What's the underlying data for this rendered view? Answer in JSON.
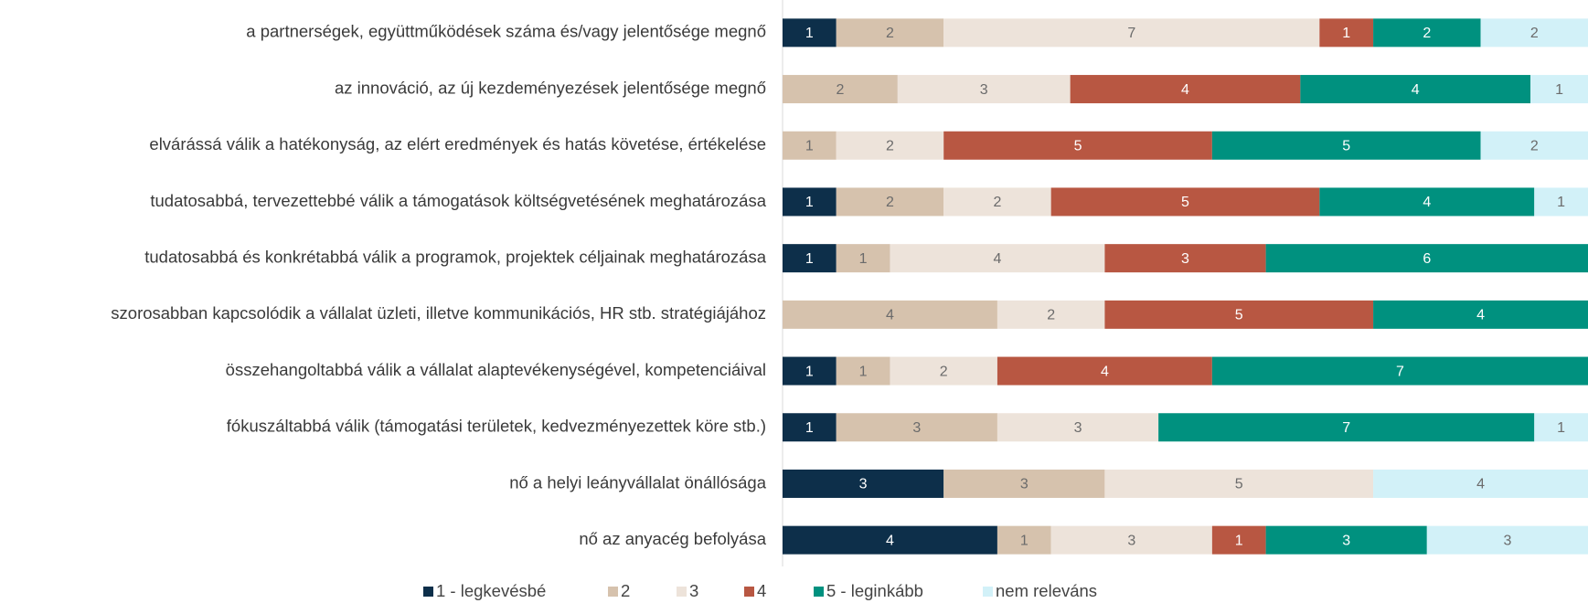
{
  "chart_data": {
    "type": "stacked_bar_horizontal",
    "stacking": "percent",
    "categories": [
      "a partnerségek, együttműködések száma és/vagy jelentősége megnő",
      "az innováció, az új kezdeményezések jelentősége megnő",
      "elvárássá válik a hatékonyság, az elért eredmények és hatás követése, értékelése",
      "tudatosabbá, tervezettebbé válik a támogatások költségvetésének meghatározása",
      "tudatosabbá és konkrétabbá válik a programok, projektek céljainak meghatározása",
      "szorosabban kapcsolódik a vállalat üzleti, illetve kommunikációs, HR stb. stratégiájához",
      "összehangoltabbá válik a vállalat alaptevékenységével, kompetenciáival",
      "fókuszáltabbá válik (támogatási területek, kedvezményezettek köre stb.)",
      "nő a helyi leányvállalat önállósága",
      "nő az anyacég befolyása"
    ],
    "series": [
      {
        "name": "1 - legkevésbé",
        "color": "#0d2f4a",
        "label_color": "#ffffff",
        "values": [
          1,
          0,
          0,
          1,
          1,
          0,
          1,
          1,
          3,
          4
        ]
      },
      {
        "name": "2",
        "color": "#d6c2ad",
        "label_color": "#6b6b6b",
        "values": [
          2,
          2,
          1,
          2,
          1,
          4,
          1,
          3,
          3,
          1
        ]
      },
      {
        "name": "3",
        "color": "#ede3da",
        "label_color": "#6b6b6b",
        "values": [
          7,
          3,
          2,
          2,
          4,
          2,
          2,
          3,
          5,
          3
        ]
      },
      {
        "name": "4",
        "color": "#b85742",
        "label_color": "#ffffff",
        "values": [
          1,
          4,
          5,
          5,
          3,
          5,
          4,
          0,
          0,
          1
        ]
      },
      {
        "name": "5 - leginkább",
        "color": "#00917f",
        "label_color": "#ffffff",
        "values": [
          2,
          4,
          5,
          4,
          6,
          4,
          7,
          7,
          0,
          3
        ]
      },
      {
        "name": "nem releváns",
        "color": "#d2f1f8",
        "label_color": "#6b6b6b",
        "values": [
          2,
          1,
          2,
          1,
          0,
          0,
          0,
          1,
          4,
          3
        ]
      }
    ]
  }
}
